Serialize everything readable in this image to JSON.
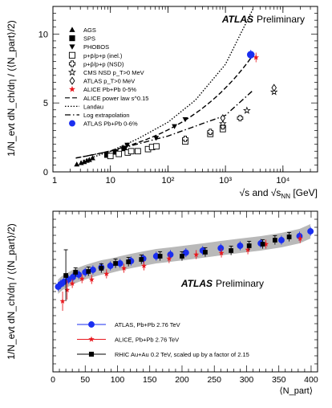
{
  "chart_data": [
    {
      "type": "scatter",
      "brand": "ATLAS",
      "tag": "Preliminary",
      "ylabel": "1/N_evt dN_ch/dη / (⟨N_part⟩/2)",
      "xlabel_sqrt_s": "√s and √s",
      "xlabel_sub": "NN",
      "xlabel_unit": "[GeV]",
      "x_scale": "log",
      "xlim": [
        1,
        40000
      ],
      "ylim": [
        0,
        12
      ],
      "x_ticks": [
        {
          "v": 10,
          "label": "10"
        },
        {
          "v": 100,
          "label": "10²"
        },
        {
          "v": 1000,
          "label": "10³"
        },
        {
          "v": 10000,
          "label": "10⁴"
        }
      ],
      "y_ticks": [
        {
          "v": 0,
          "label": "0"
        },
        {
          "v": 5,
          "label": "5"
        },
        {
          "v": 10,
          "label": "10"
        }
      ],
      "x_minor": [
        1,
        2,
        3,
        4,
        5,
        6,
        7,
        8,
        9,
        10,
        20,
        30,
        40,
        50,
        60,
        70,
        80,
        90,
        100,
        200,
        300,
        400,
        500,
        600,
        700,
        800,
        900,
        1000,
        2000,
        3000,
        4000,
        5000,
        6000,
        7000,
        8000,
        9000,
        10000,
        20000,
        30000,
        40000
      ],
      "legend": [
        {
          "label": "AGS",
          "symbol": "triangle"
        },
        {
          "label": "SPS",
          "symbol": "square"
        },
        {
          "label": "PHOBOS",
          "symbol": "triangle-down"
        },
        {
          "label": "p+p̄/p+p (inel.)",
          "symbol": "square-open"
        },
        {
          "label": "p+p̄/p+p (NSD)",
          "symbol": "cross-open"
        },
        {
          "label": "CMS NSD p_T>0 MeV",
          "symbol": "star-open"
        },
        {
          "label": "ATLAS p_T>0 MeV",
          "symbol": "diamond-open"
        },
        {
          "label": "ALICE Pb+Pb 0-5%",
          "symbol": "star-red"
        },
        {
          "label": "ALICE power law s^0.15",
          "symbol": "line-dashed"
        },
        {
          "label": "Landau",
          "symbol": "line-dotted"
        },
        {
          "label": "Log extrapolation",
          "symbol": "line-dashdot"
        },
        {
          "label": "ATLAS Pb+Pb 0-6%",
          "symbol": "circle-blue"
        }
      ],
      "series": [
        {
          "name": "AGS",
          "symbol": "triangle",
          "points": [
            [
              2.6,
              0.55
            ],
            [
              3.1,
              0.65
            ],
            [
              3.5,
              0.73
            ],
            [
              3.9,
              0.82
            ],
            [
              4.3,
              0.88
            ],
            [
              4.9,
              1.0
            ]
          ]
        },
        {
          "name": "SPS",
          "symbol": "square",
          "points": [
            [
              8.7,
              1.22
            ],
            [
              12.3,
              1.45
            ],
            [
              17.3,
              1.7
            ]
          ]
        },
        {
          "name": "PHOBOS",
          "symbol": "triangle-down",
          "points": [
            [
              19.6,
              1.95
            ],
            [
              62.4,
              2.45
            ],
            [
              130,
              3.3
            ],
            [
              200,
              3.8
            ]
          ]
        },
        {
          "name": "p+p̄/p+p (inel.)",
          "symbol": "square-open",
          "points": [
            [
              10,
              1.15
            ],
            [
              14,
              1.3
            ],
            [
              20,
              1.4
            ],
            [
              23,
              1.5
            ],
            [
              30,
              1.5
            ],
            [
              45,
              1.65
            ],
            [
              53,
              1.8
            ],
            [
              63,
              1.85
            ],
            [
              200,
              2.2
            ],
            [
              546,
              2.75
            ],
            [
              900,
              3.1
            ]
          ]
        },
        {
          "name": "p+p̄/p+p (NSD)",
          "symbol": "cross-open",
          "points": [
            [
              200,
              2.4
            ],
            [
              546,
              2.9
            ],
            [
              900,
              3.3
            ],
            [
              1800,
              3.9
            ]
          ]
        },
        {
          "name": "CMS NSD p_T>0 MeV",
          "symbol": "star-open",
          "points": [
            [
              900,
              3.5
            ],
            [
              2360,
              4.45
            ],
            [
              7000,
              5.8
            ]
          ]
        },
        {
          "name": "ATLAS p_T>0 MeV",
          "symbol": "diamond-open",
          "points": [
            [
              900,
              3.9
            ],
            [
              7000,
              6.1
            ]
          ]
        },
        {
          "name": "ALICE Pb+Pb 0-5%",
          "symbol": "star-red",
          "points": [
            [
              3400,
              8.3
            ]
          ]
        },
        {
          "name": "ATLAS Pb+Pb 0-6%",
          "symbol": "circle-blue",
          "points": [
            [
              2760,
              8.5
            ]
          ]
        }
      ],
      "curves": [
        {
          "name": "ALICE power law s^0.15",
          "style": "dashed",
          "x_range": [
            2.5,
            3000
          ],
          "formula": "0.766 * x^0.3"
        },
        {
          "name": "Landau",
          "style": "dotted",
          "x_range": [
            3,
            3000
          ],
          "formula": "0.746 * x^0.5 * exp(sqrt(ln(x^2/(4*0.938^2))/2))/... (visual)",
          "points": [
            [
              3,
              0.75
            ],
            [
              10,
              1.5
            ],
            [
              30,
              2.4
            ],
            [
              100,
              3.6
            ],
            [
              300,
              5.2
            ],
            [
              1000,
              7.8
            ],
            [
              3000,
              11.8
            ]
          ]
        },
        {
          "name": "Log extrapolation",
          "style": "dashdot",
          "x_range": [
            2.5,
            3000
          ],
          "formula": "0.8 * ln(x) + ... (visual)",
          "points": [
            [
              2.5,
              1.0
            ],
            [
              10,
              1.5
            ],
            [
              100,
              2.6
            ],
            [
              1000,
              4.1
            ],
            [
              3000,
              5.9
            ]
          ]
        }
      ]
    },
    {
      "type": "scatter",
      "brand": "ATLAS",
      "tag": "Preliminary",
      "ylabel": "1/N_evt dN_ch/dη / (⟨N_part⟩/2)",
      "xlabel": "⟨N_part⟩",
      "xlim": [
        0,
        410
      ],
      "ylim": [
        0,
        10
      ],
      "x_ticks": [
        {
          "v": 0,
          "label": "0"
        },
        {
          "v": 50,
          "label": "50"
        },
        {
          "v": 100,
          "label": "100"
        },
        {
          "v": 150,
          "label": "150"
        },
        {
          "v": 200,
          "label": "200"
        },
        {
          "v": 250,
          "label": "250"
        },
        {
          "v": 300,
          "label": "300"
        },
        {
          "v": 350,
          "label": "350"
        },
        {
          "v": 400,
          "label": "400"
        }
      ],
      "legend": [
        {
          "label": "ATLAS, Pb+Pb 2.76 TeV",
          "symbol": "circle-blue"
        },
        {
          "label": "ALICE, Pb+Pb 2.76 TeV",
          "symbol": "star-red"
        },
        {
          "label": "RHIC Au+Au 0.2 TeV, scaled up by a factor of 2.15",
          "symbol": "square-black"
        }
      ],
      "series": [
        {
          "name": "ATLAS, Pb+Pb 2.76 TeV",
          "symbol": "circle-blue",
          "points": [
            [
              8,
              5.3
            ],
            [
              12,
              5.45
            ],
            [
              17,
              5.6
            ],
            [
              24,
              5.75
            ],
            [
              31,
              5.9
            ],
            [
              40,
              6.05
            ],
            [
              50,
              6.2
            ],
            [
              62,
              6.35
            ],
            [
              75,
              6.5
            ],
            [
              89,
              6.6
            ],
            [
              104,
              6.75
            ],
            [
              121,
              6.9
            ],
            [
              140,
              7.05
            ],
            [
              160,
              7.2
            ],
            [
              182,
              7.3
            ],
            [
              206,
              7.42
            ],
            [
              232,
              7.55
            ],
            [
              260,
              7.7
            ],
            [
              290,
              7.85
            ],
            [
              322,
              8.0
            ],
            [
              354,
              8.2
            ],
            [
              382,
              8.45
            ],
            [
              399,
              8.75
            ]
          ]
        },
        {
          "name": "ALICE, Pb+Pb 2.76 TeV",
          "symbol": "star-red",
          "points": [
            [
              15,
              4.4
            ],
            [
              22,
              5.1
            ],
            [
              30,
              5.5
            ],
            [
              45,
              5.8
            ],
            [
              60,
              5.75
            ],
            [
              83,
              6.1
            ],
            [
              110,
              6.45
            ],
            [
              141,
              6.6
            ],
            [
              180,
              7.05
            ],
            [
              222,
              7.3
            ],
            [
              261,
              7.4
            ],
            [
              302,
              7.6
            ],
            [
              330,
              7.95
            ],
            [
              383,
              8.3
            ]
          ]
        },
        {
          "name": "RHIC Au+Au 0.2 TeV, scaled up by a factor of 2.15",
          "symbol": "square-black",
          "points": [
            [
              20,
              6.0
            ],
            [
              35,
              6.2
            ],
            [
              55,
              6.25
            ],
            [
              75,
              6.45
            ],
            [
              97,
              6.75
            ],
            [
              117,
              6.85
            ],
            [
              137,
              7.0
            ],
            [
              166,
              7.2
            ],
            [
              200,
              7.2
            ],
            [
              236,
              7.45
            ],
            [
              276,
              7.55
            ],
            [
              304,
              7.85
            ],
            [
              325,
              7.95
            ],
            [
              344,
              8.2
            ],
            [
              366,
              8.4
            ]
          ]
        }
      ]
    }
  ]
}
